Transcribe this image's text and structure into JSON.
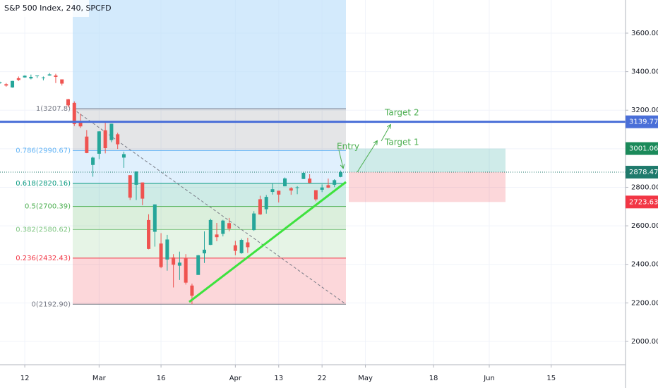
{
  "chart_data": {
    "type": "candlestick",
    "title": "S&P 500 Index, 240, SPCFD",
    "x": [
      3,
      4,
      5,
      6,
      7,
      8,
      9,
      10,
      11,
      12,
      13,
      14,
      15,
      16,
      17,
      18,
      19,
      20,
      21,
      22,
      23,
      24,
      25,
      26,
      27,
      28,
      29,
      30,
      31,
      32,
      33,
      34,
      35,
      36,
      37,
      38,
      39,
      40,
      41,
      42,
      43,
      44,
      45,
      46,
      47,
      48,
      49,
      50,
      51,
      52,
      53,
      54,
      55,
      56,
      57,
      58
    ],
    "open": [
      3344,
      3335,
      3318,
      3366,
      3370,
      3365,
      3378,
      3369,
      3380,
      3380,
      3360,
      3257,
      3238,
      3140,
      3063,
      2916,
      2974,
      3096,
      3045,
      3075,
      2954,
      2863,
      2813,
      2825,
      2630,
      2569,
      2508,
      2425,
      2436,
      2393,
      2431,
      2290,
      2345,
      2457,
      2501,
      2555,
      2558,
      2614,
      2499,
      2458,
      2514,
      2578,
      2738,
      2686,
      2776,
      2782,
      2805,
      2795,
      2799,
      2843,
      2845,
      2785,
      2787,
      2811,
      2813,
      2854
    ],
    "high": [
      3348,
      3341,
      3352,
      3375,
      3381,
      3385,
      3380,
      3375,
      3393,
      3389,
      3360,
      3259,
      3246,
      3182,
      3097,
      2959,
      3091,
      3137,
      3130,
      3083,
      2985,
      2863,
      2882,
      2825,
      2660,
      2711,
      2562,
      2553,
      2453,
      2466,
      2453,
      2300,
      2449,
      2571,
      2637,
      2615,
      2631,
      2641,
      2522,
      2533,
      2538,
      2676,
      2756,
      2760,
      2819,
      2782,
      2851,
      2801,
      2806,
      2880,
      2868,
      2785,
      2815,
      2845,
      2842,
      2887
    ],
    "low": [
      3337,
      3322,
      3317,
      3352,
      3369,
      3360,
      3367,
      3355,
      3379,
      3341,
      3328,
      3214,
      3118,
      3108,
      2977,
      2855,
      2946,
      2976,
      3034,
      2999,
      2901,
      2734,
      2734,
      2707,
      2478,
      2492,
      2380,
      2367,
      2280,
      2319,
      2295,
      2192.9,
      2345,
      2407,
      2500,
      2520,
      2545,
      2571,
      2447,
      2455,
      2459,
      2574,
      2657,
      2663,
      2762,
      2721,
      2805,
      2761,
      2764,
      2843,
      2820,
      2727,
      2775,
      2796,
      2801,
      2852
    ],
    "close": [
      3345,
      3328,
      3352,
      3357,
      3379,
      3373,
      3380,
      3370,
      3386,
      3373,
      3338,
      3225,
      3128,
      3116,
      2978,
      2954,
      3090,
      3003,
      3130,
      3023,
      2972,
      2746,
      2882,
      2741,
      2480,
      2711,
      2386,
      2529,
      2398,
      2409,
      2305,
      2237,
      2447,
      2476,
      2630,
      2541,
      2627,
      2585,
      2470,
      2527,
      2489,
      2664,
      2659,
      2750,
      2790,
      2762,
      2846,
      2783,
      2800,
      2875,
      2823,
      2737,
      2799,
      2798,
      2837,
      2878
    ],
    "up_color": "#26a69a",
    "down_color": "#ef5350",
    "xlim": [
      3,
      104
    ],
    "xticks": [
      {
        "value": 7,
        "label": "12"
      },
      {
        "value": 19,
        "label": "Mar"
      },
      {
        "value": 29,
        "label": "16"
      },
      {
        "value": 41,
        "label": "Apr"
      },
      {
        "value": 48,
        "label": "13"
      },
      {
        "value": 55,
        "label": "22"
      },
      {
        "value": 62,
        "label": "May"
      },
      {
        "value": 73,
        "label": "18"
      },
      {
        "value": 82,
        "label": "Jun"
      },
      {
        "value": 92,
        "label": "15"
      }
    ],
    "ylim": [
      1879,
      3772
    ],
    "yticks": [
      {
        "value": 2000,
        "label": "2000.00"
      },
      {
        "value": 2200,
        "label": "2200.00"
      },
      {
        "value": 2400,
        "label": "2400.00"
      },
      {
        "value": 2600,
        "label": "2600.00"
      },
      {
        "value": 2800,
        "label": "2800.00"
      },
      {
        "value": 3000,
        "label": "3000.00"
      },
      {
        "value": 3200,
        "label": "3200.00"
      },
      {
        "value": 3400,
        "label": "3400.00"
      },
      {
        "value": 3600,
        "label": "3600.00"
      }
    ],
    "grid": true,
    "fib_levels": [
      {
        "label": "1(3207.8)",
        "value": 3207.8,
        "color": "#787b86"
      },
      {
        "label": "0.786(2990.67)",
        "value": 2990.67,
        "color": "#64b5f6"
      },
      {
        "label": "0.618(2820.16)",
        "value": 2820.16,
        "color": "#089981"
      },
      {
        "label": "0.5(2700.39)",
        "value": 2700.39,
        "color": "#4caf50"
      },
      {
        "label": "0.382(2580.62)",
        "value": 2580.62,
        "color": "#81c784"
      },
      {
        "label": "0.236(2432.43)",
        "value": 2432.43,
        "color": "#f23645"
      },
      {
        "label": "0(2192.90)",
        "value": 2192.9,
        "color": "#787b86"
      }
    ],
    "horizontal_line": {
      "value": 3139.77,
      "color": "#4a6fd8"
    },
    "position": {
      "entry": 2878.47,
      "target": 3001.06,
      "stop": 2723.63,
      "entry_color": "#1f7a6c",
      "target_color": "#1b8a5a",
      "stop_color": "#f23645"
    },
    "annotations": [
      "Entry",
      "Target 1",
      "Target 2"
    ]
  }
}
